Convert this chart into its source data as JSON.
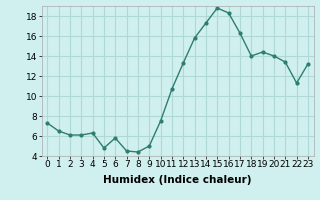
{
  "x": [
    0,
    1,
    2,
    3,
    4,
    5,
    6,
    7,
    8,
    9,
    10,
    11,
    12,
    13,
    14,
    15,
    16,
    17,
    18,
    19,
    20,
    21,
    22,
    23
  ],
  "y": [
    7.3,
    6.5,
    6.1,
    6.1,
    6.3,
    4.8,
    5.8,
    4.5,
    4.4,
    5.0,
    7.5,
    10.7,
    13.3,
    15.8,
    17.3,
    18.8,
    18.3,
    16.3,
    14.0,
    14.4,
    14.0,
    13.4,
    11.3,
    13.2
  ],
  "line_color": "#2e7d6e",
  "marker": "o",
  "marker_size": 2,
  "bg_color": "#d0f0f0",
  "grid_color": "#b0d8d8",
  "xlabel": "Humidex (Indice chaleur)",
  "ylim": [
    4,
    19
  ],
  "xlim": [
    -0.5,
    23.5
  ],
  "yticks": [
    4,
    6,
    8,
    10,
    12,
    14,
    16,
    18
  ],
  "xticks": [
    0,
    1,
    2,
    3,
    4,
    5,
    6,
    7,
    8,
    9,
    10,
    11,
    12,
    13,
    14,
    15,
    16,
    17,
    18,
    19,
    20,
    21,
    22,
    23
  ],
  "xtick_labels": [
    "0",
    "1",
    "2",
    "3",
    "4",
    "5",
    "6",
    "7",
    "8",
    "9",
    "10",
    "11",
    "12",
    "13",
    "14",
    "15",
    "16",
    "17",
    "18",
    "19",
    "20",
    "21",
    "22",
    "23"
  ],
  "tick_fontsize": 6.5,
  "xlabel_fontsize": 7.5
}
